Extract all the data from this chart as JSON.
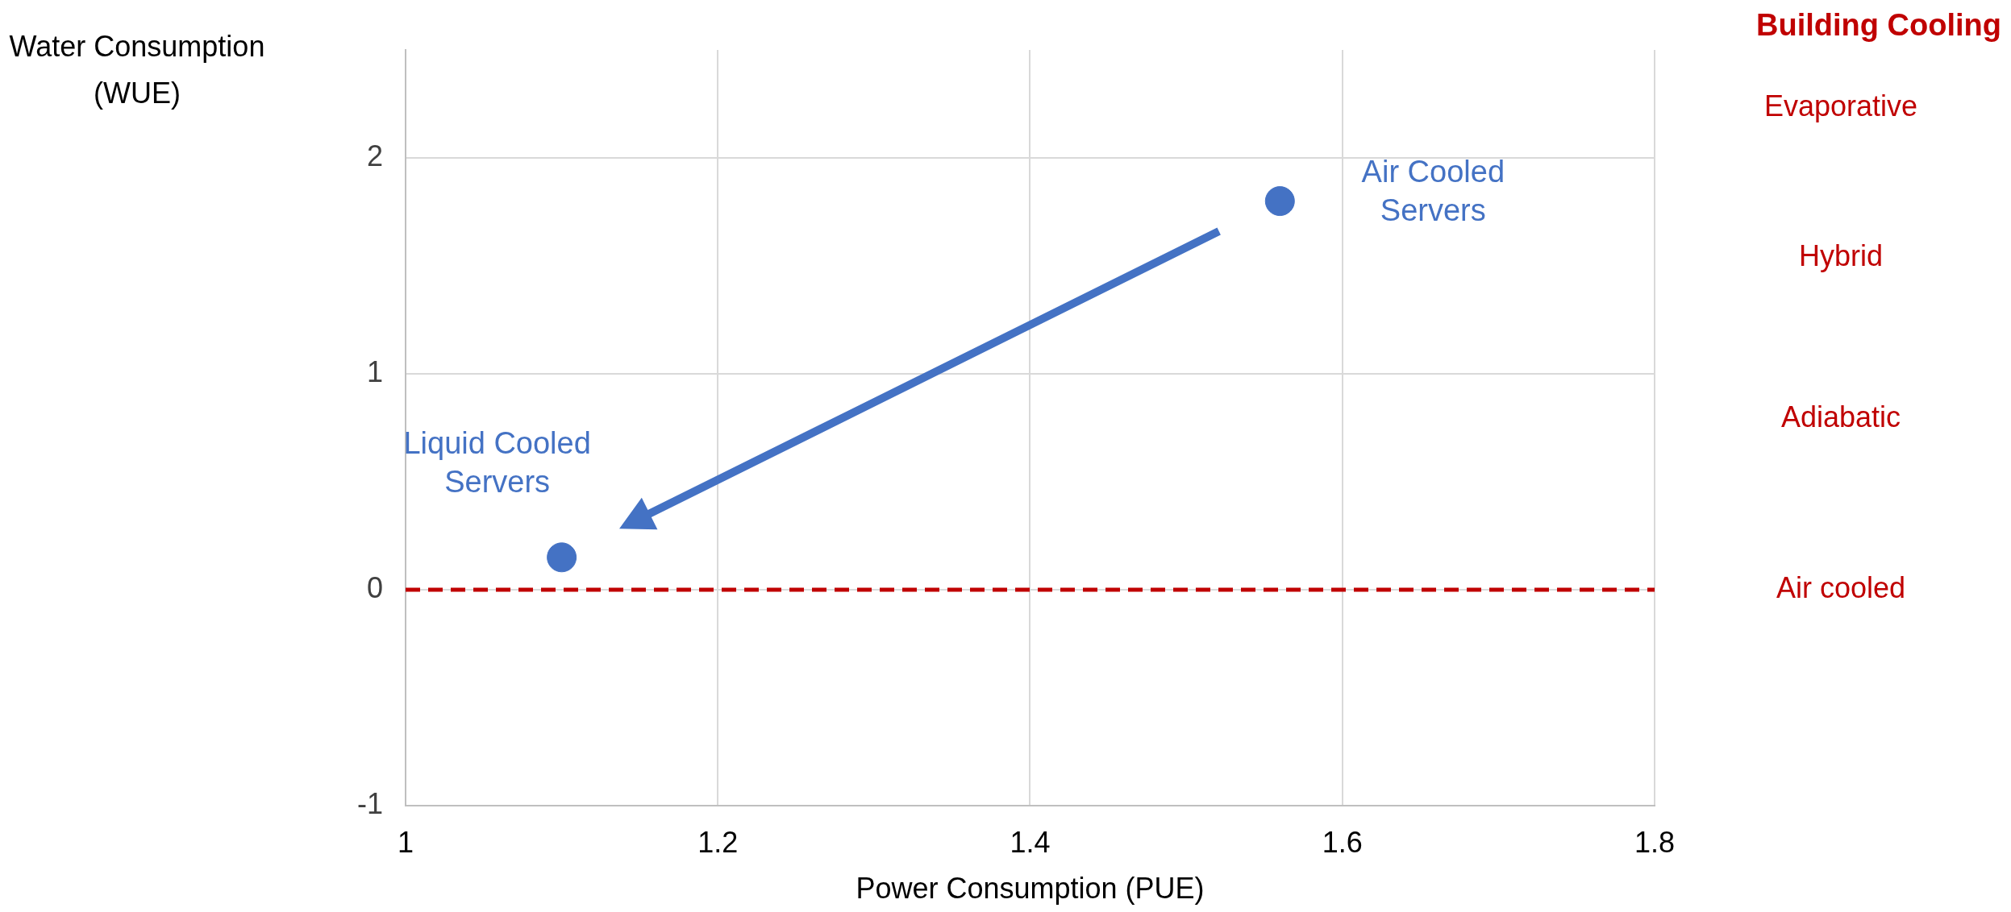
{
  "chart_data": {
    "type": "scatter",
    "xlabel": "Power Consumption (PUE)",
    "ylabel": "Water Consumption (WUE)",
    "xlim": [
      1,
      1.8
    ],
    "xticks": [
      1,
      1.2,
      1.4,
      1.6,
      1.8
    ],
    "ylim": [
      -1,
      2.5
    ],
    "yticks": [
      -1,
      0,
      1,
      2
    ],
    "grid": true,
    "legend": false,
    "marker": "circle",
    "series": [
      {
        "name": "Air Cooled Servers",
        "color": "#4472c4",
        "x": [
          1.56
        ],
        "values": [
          1.8
        ]
      },
      {
        "name": "Liquid Cooled Servers",
        "color": "#4472c4",
        "x": [
          1.1
        ],
        "values": [
          0.15
        ]
      }
    ],
    "ref_lines": [
      {
        "axis": "y",
        "value": 0,
        "label": "Air cooled",
        "color": "#c00000",
        "line_style": "dashed"
      }
    ],
    "annotations": [
      "Building Cooling",
      "Evaporative",
      "Hybrid",
      "Adiabatic"
    ]
  }
}
